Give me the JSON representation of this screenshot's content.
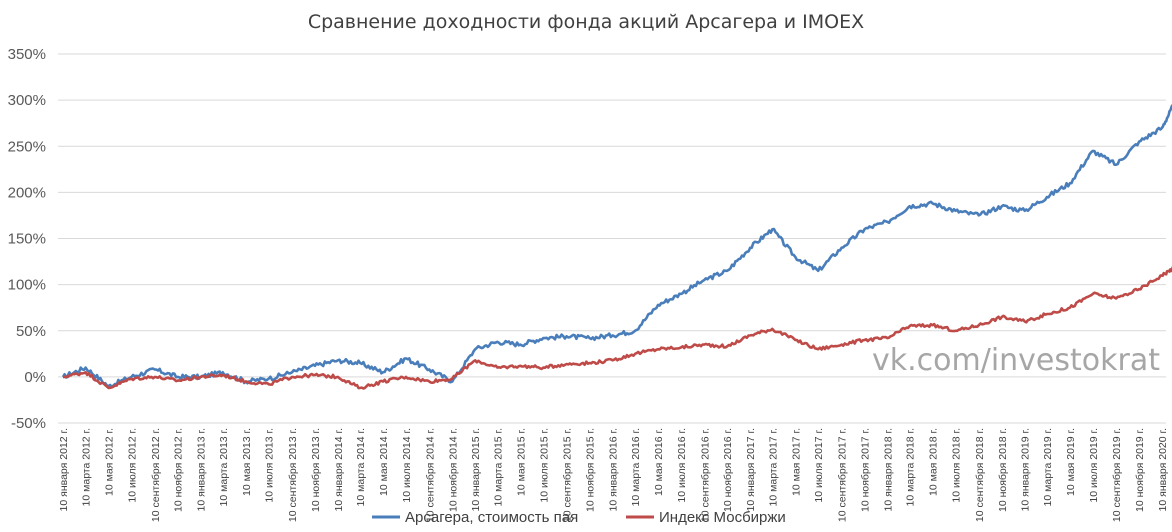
{
  "chart_data": {
    "type": "line",
    "title": "Сравнение доходности фонда акций Арсагера и IMOEX",
    "watermark": "vk.com/investokrat",
    "ylim": [
      -50,
      350
    ],
    "yticks": [
      "-50%",
      "0%",
      "50%",
      "100%",
      "150%",
      "200%",
      "250%",
      "300%",
      "350%"
    ],
    "ytick_values": [
      -50,
      0,
      50,
      100,
      150,
      200,
      250,
      300,
      350
    ],
    "grid": true,
    "legend_position": "bottom",
    "x_tick_labels": [
      "10 января 2012 г.",
      "10 марта 2012 г.",
      "10 мая 2012 г.",
      "10 июля 2012 г.",
      "10 сентября 2012 г.",
      "10 ноября 2012 г.",
      "10 января 2013 г.",
      "10 марта 2013 г.",
      "10 мая 2013 г.",
      "10 июля 2013 г.",
      "10 сентября 2013 г.",
      "10 ноября 2013 г.",
      "10 января 2014 г.",
      "10 марта 2014 г.",
      "10 мая 2014 г.",
      "10 июля 2014 г.",
      "10 сентября 2014 г.",
      "10 ноября 2014 г.",
      "10 января 2015 г.",
      "10 марта 2015 г.",
      "10 мая 2015 г.",
      "10 июля 2015 г.",
      "10 сентября 2015 г.",
      "10 ноября 2015 г.",
      "10 января 2016 г.",
      "10 марта 2016 г.",
      "10 мая 2016 г.",
      "10 июля 2016 г.",
      "10 сентября 2016 г.",
      "10 ноября 2016 г.",
      "10 января 2017 г.",
      "10 марта 2017 г.",
      "10 мая 2017 г.",
      "10 июля 2017 г.",
      "10 сентября 2017 г.",
      "10 ноября 2017 г.",
      "10 января 2018 г.",
      "10 марта 2018 г.",
      "10 мая 2018 г.",
      "10 июля 2018 г.",
      "10 сентября 2018 г.",
      "10 ноября 2018 г.",
      "10 января 2019 г.",
      "10 марта 2019 г.",
      "10 мая 2019 г.",
      "10 июля 2019 г.",
      "10 сентября 2019 г.",
      "10 ноября 2019 г.",
      "10 января 2020 г."
    ],
    "x": [
      "2012-01-10",
      "2012-03-10",
      "2012-05-10",
      "2012-07-10",
      "2012-09-10",
      "2012-11-10",
      "2013-01-10",
      "2013-03-10",
      "2013-05-10",
      "2013-07-10",
      "2013-09-10",
      "2013-11-10",
      "2014-01-10",
      "2014-03-10",
      "2014-05-10",
      "2014-07-10",
      "2014-09-10",
      "2014-11-10",
      "2015-01-10",
      "2015-03-10",
      "2015-05-10",
      "2015-07-10",
      "2015-09-10",
      "2015-11-10",
      "2016-01-10",
      "2016-03-10",
      "2016-05-10",
      "2016-07-10",
      "2016-09-10",
      "2016-11-10",
      "2017-01-10",
      "2017-03-10",
      "2017-05-10",
      "2017-07-10",
      "2017-09-10",
      "2017-11-10",
      "2018-01-10",
      "2018-03-10",
      "2018-05-10",
      "2018-07-10",
      "2018-09-10",
      "2018-11-10",
      "2019-01-10",
      "2019-03-10",
      "2019-05-10",
      "2019-07-10",
      "2019-09-10",
      "2019-11-10",
      "2020-01-10",
      "2020-02-10"
    ],
    "series": [
      {
        "name": "Арсагера, стоимость пая",
        "color": "#4a7ebb",
        "values": [
          0,
          10,
          -10,
          0,
          8,
          0,
          0,
          5,
          -5,
          -2,
          5,
          12,
          18,
          15,
          5,
          20,
          8,
          -5,
          30,
          38,
          35,
          42,
          44,
          42,
          45,
          50,
          78,
          90,
          105,
          115,
          140,
          160,
          130,
          115,
          140,
          160,
          168,
          185,
          188,
          180,
          175,
          185,
          180,
          195,
          210,
          245,
          230,
          255,
          270,
          295
        ]
      },
      {
        "name": "Индекс Мосбиржи",
        "color": "#be4b48",
        "values": [
          0,
          5,
          -12,
          -2,
          0,
          -4,
          0,
          2,
          -5,
          -8,
          0,
          2,
          0,
          -12,
          -5,
          0,
          -5,
          -2,
          18,
          10,
          12,
          10,
          14,
          15,
          18,
          25,
          30,
          32,
          35,
          33,
          45,
          52,
          40,
          30,
          35,
          40,
          42,
          55,
          56,
          50,
          56,
          65,
          60,
          68,
          75,
          90,
          85,
          95,
          110,
          118
        ]
      }
    ]
  }
}
